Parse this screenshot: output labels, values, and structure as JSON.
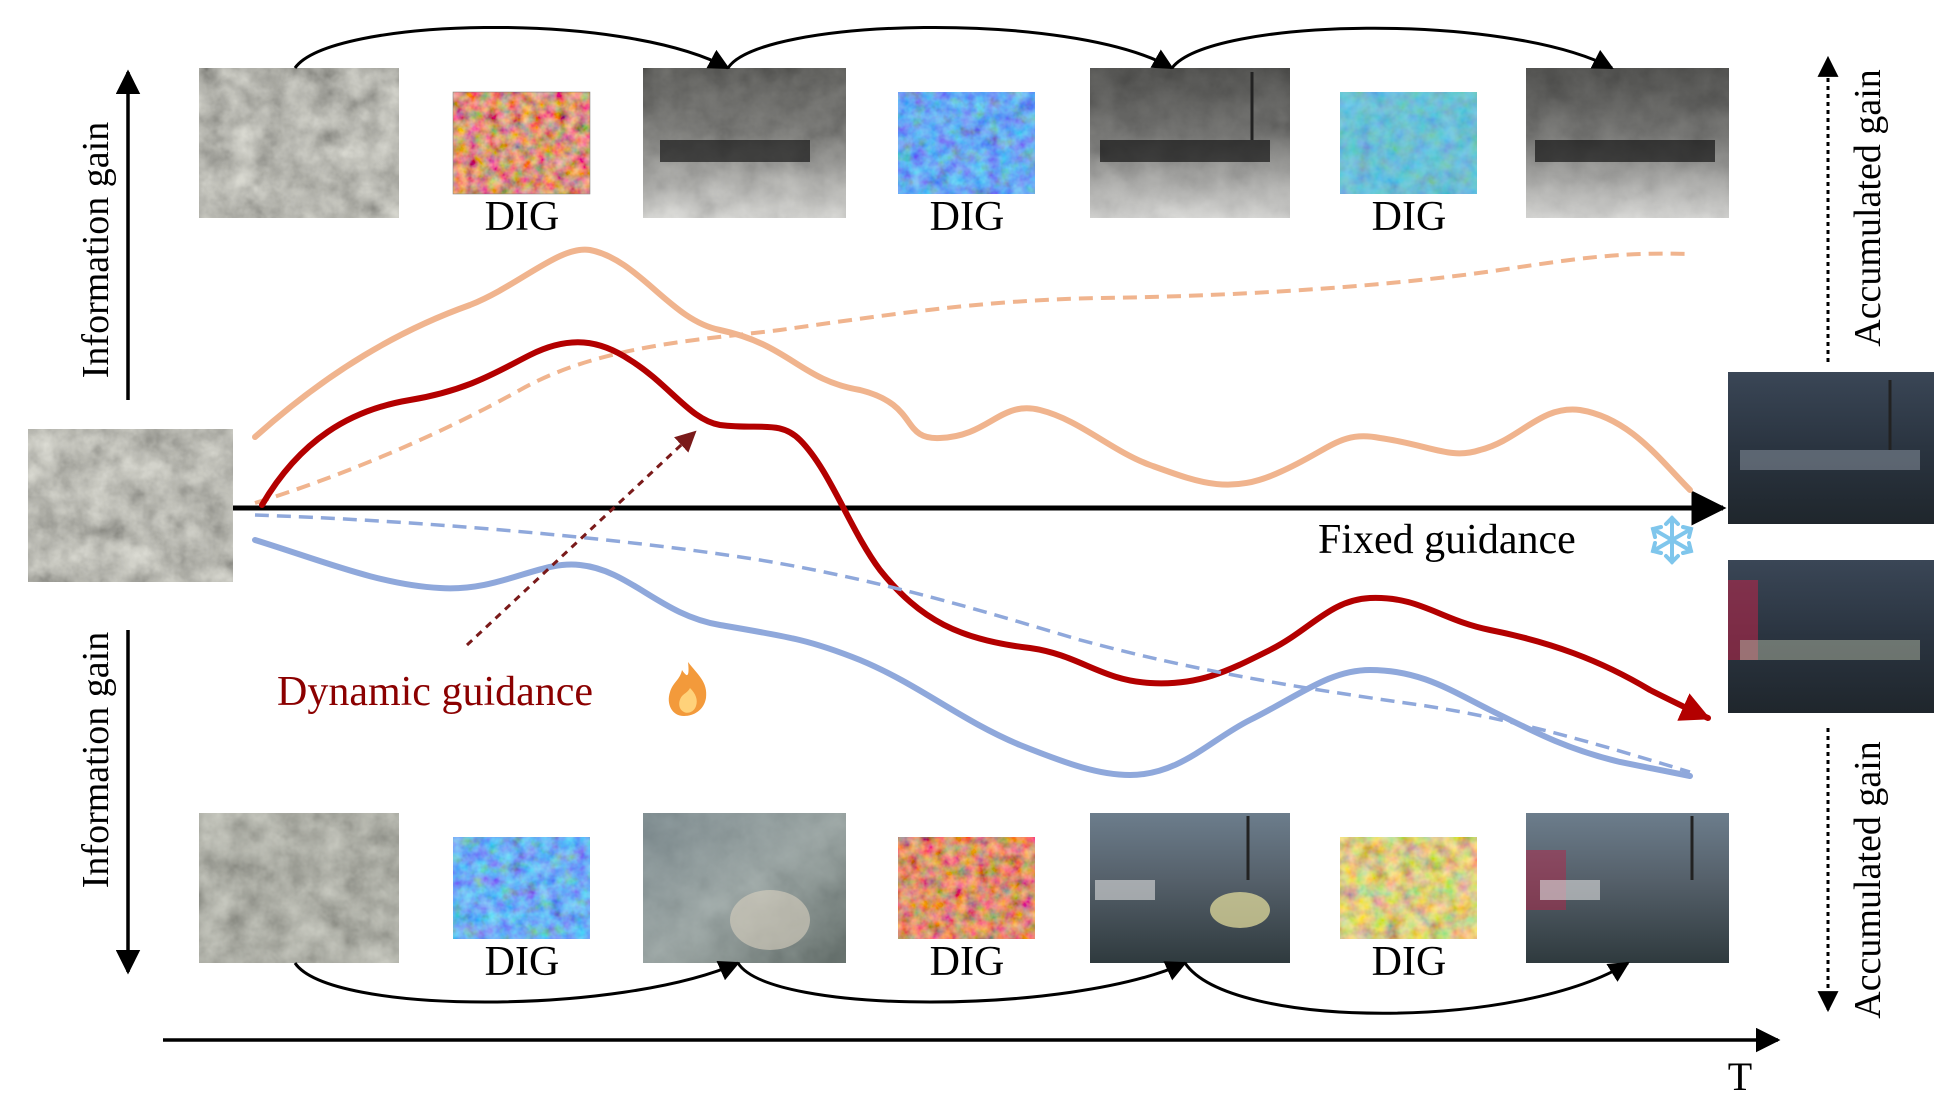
{
  "figure": {
    "axes": {
      "left_top_label": "Information gain",
      "left_bottom_label": "Information gain",
      "right_top_label": "Accumulated gain",
      "right_bottom_label": "Accumulated gain",
      "time_label": "T"
    },
    "dig_label": "DIG",
    "fixed_guidance_label": "Fixed guidance",
    "dynamic_guidance_label": "Dynamic guidance",
    "icons": {
      "fixed": "snowflake-icon",
      "dynamic": "flame-icon"
    },
    "colors": {
      "orange_curve": "#F0B48E",
      "red_curve": "#B30000",
      "blue_curve": "#8FA8DB",
      "axis": "#000000"
    },
    "top_row_images": [
      "noisy-thermal-start",
      "thermal-intermediate-1",
      "thermal-intermediate-2",
      "thermal-final"
    ],
    "bottom_row_images": [
      "noisy-rgb-start",
      "rgb-intermediate-1",
      "rgb-intermediate-2",
      "rgb-final"
    ]
  }
}
